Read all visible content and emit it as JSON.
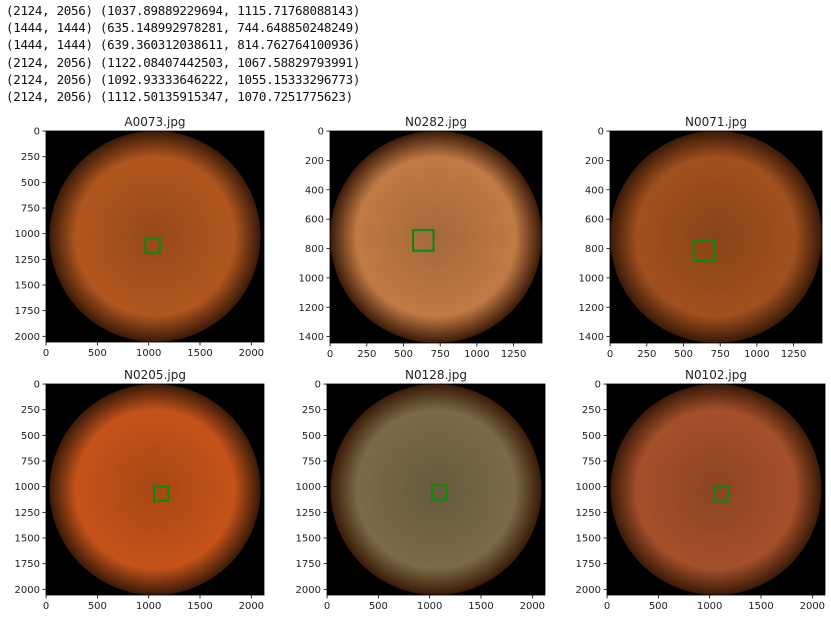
{
  "output_lines": [
    "(2124, 2056) (1037.89889229694, 1115.71768088143)",
    "(1444, 1444) (635.148992978281, 744.648850248249)",
    "(1444, 1444) (639.360312038611, 814.762764100936)",
    "(2124, 2056) (1122.08407442503, 1067.58829793991)",
    "(2124, 2056) (1092.93333646222, 1055.15333296773)",
    "(2124, 2056) (1112.50135915347, 1070.7251775623)"
  ],
  "plots": [
    {
      "title": "A0073.jpg",
      "xlim": [
        -0.5,
        2123.5
      ],
      "ylim": [
        2055.5,
        -0.5
      ],
      "xticks": [
        0,
        500,
        1000,
        1500,
        2000
      ],
      "yticks": [
        0,
        250,
        500,
        750,
        1000,
        1250,
        1500,
        1750,
        2000
      ],
      "center": [
        1037.9,
        1115.7
      ],
      "box_size": 140,
      "color": "#b0561f"
    },
    {
      "title": "N0282.jpg",
      "xlim": [
        -0.5,
        1443.5
      ],
      "ylim": [
        1443.5,
        -0.5
      ],
      "xticks": [
        0,
        250,
        500,
        750,
        1000,
        1250
      ],
      "yticks": [
        0,
        200,
        400,
        600,
        800,
        1000,
        1200,
        1400
      ],
      "center": [
        635.1,
        744.6
      ],
      "box_size": 140,
      "color": "#c07a45"
    },
    {
      "title": "N0071.jpg",
      "xlim": [
        -0.5,
        1443.5
      ],
      "ylim": [
        1443.5,
        -0.5
      ],
      "xticks": [
        0,
        250,
        500,
        750,
        1000,
        1250
      ],
      "yticks": [
        0,
        200,
        400,
        600,
        800,
        1000,
        1200,
        1400
      ],
      "center": [
        639.4,
        814.8
      ],
      "box_size": 140,
      "color": "#a0501e"
    },
    {
      "title": "N0205.jpg",
      "xlim": [
        -0.5,
        2123.5
      ],
      "ylim": [
        2055.5,
        -0.5
      ],
      "xticks": [
        0,
        500,
        1000,
        1500,
        2000
      ],
      "yticks": [
        0,
        250,
        500,
        750,
        1000,
        1250,
        1500,
        1750,
        2000
      ],
      "center": [
        1122.1,
        1067.6
      ],
      "box_size": 140,
      "color": "#c4531a"
    },
    {
      "title": "N0128.jpg",
      "xlim": [
        -0.5,
        2123.5
      ],
      "ylim": [
        2055.5,
        -0.5
      ],
      "xticks": [
        0,
        500,
        1000,
        1500,
        2000
      ],
      "yticks": [
        0,
        250,
        500,
        750,
        1000,
        1250,
        1500,
        1750,
        2000
      ],
      "center": [
        1092.9,
        1055.2
      ],
      "box_size": 140,
      "color": "#7a6a45"
    },
    {
      "title": "N0102.jpg",
      "xlim": [
        -0.5,
        2123.5
      ],
      "ylim": [
        2055.5,
        -0.5
      ],
      "xticks": [
        0,
        500,
        1000,
        1500,
        2000
      ],
      "yticks": [
        0,
        250,
        500,
        750,
        1000,
        1250,
        1500,
        1750,
        2000
      ],
      "center": [
        1112.5,
        1070.7
      ],
      "box_size": 140,
      "color": "#a4502a"
    }
  ]
}
